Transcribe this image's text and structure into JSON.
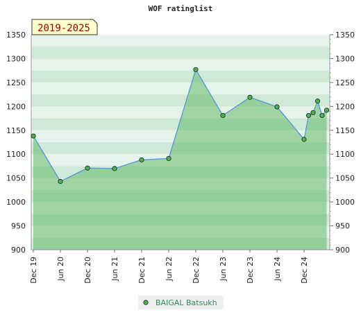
{
  "chart_data": {
    "type": "area",
    "title": "WOF ratinglist",
    "period_badge": "2019-2025",
    "xlabel": "",
    "ylabel": "",
    "ylim": [
      900,
      1350
    ],
    "y_ticks": [
      900,
      950,
      1000,
      1050,
      1100,
      1150,
      1200,
      1250,
      1300,
      1350
    ],
    "x_tick_labels": [
      "Dec 19",
      "Jun 20",
      "Dec 20",
      "Jun 21",
      "Dec 21",
      "Jun 22",
      "Dec 22",
      "Jun 23",
      "Dec 23",
      "Jun 24",
      "Dec 24"
    ],
    "grid": true,
    "legend_position": "bottom-center",
    "series": [
      {
        "name": "BAIGAL Batsukh",
        "color": "#5b9bd5",
        "marker_color": "#4caf50",
        "points": [
          {
            "x": "2019-12",
            "y": 1138
          },
          {
            "x": "2020-06",
            "y": 1043
          },
          {
            "x": "2020-12",
            "y": 1071
          },
          {
            "x": "2021-06",
            "y": 1070
          },
          {
            "x": "2021-12",
            "y": 1088
          },
          {
            "x": "2022-06",
            "y": 1091
          },
          {
            "x": "2022-12",
            "y": 1277
          },
          {
            "x": "2023-06",
            "y": 1181
          },
          {
            "x": "2023-12",
            "y": 1219
          },
          {
            "x": "2024-06",
            "y": 1199
          },
          {
            "x": "2024-12",
            "y": 1131
          },
          {
            "x": "2025-01",
            "y": 1181
          },
          {
            "x": "2025-02",
            "y": 1187
          },
          {
            "x": "2025-03",
            "y": 1211
          },
          {
            "x": "2025-04",
            "y": 1181
          },
          {
            "x": "2025-05",
            "y": 1192
          }
        ]
      }
    ]
  }
}
